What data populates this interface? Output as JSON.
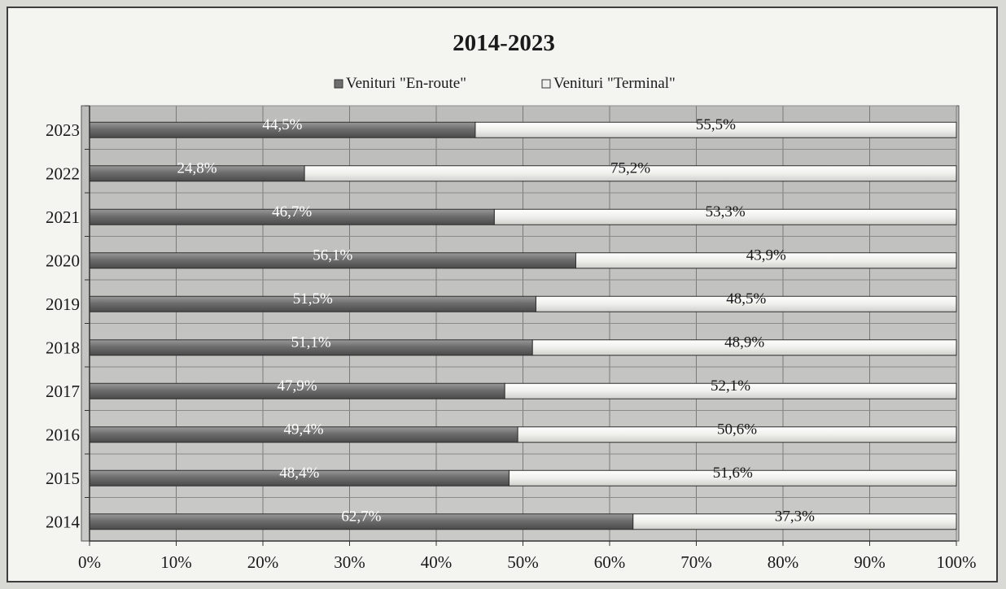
{
  "chart_data": {
    "type": "bar",
    "orientation": "horizontal",
    "stacked": true,
    "percent_stacked": true,
    "title": "2014-2023",
    "categories": [
      "2014",
      "2015",
      "2016",
      "2017",
      "2018",
      "2019",
      "2020",
      "2021",
      "2022",
      "2023"
    ],
    "series": [
      {
        "name": "Venituri \"En-route\"",
        "values": [
          62.7,
          48.4,
          49.4,
          47.9,
          51.1,
          51.5,
          56.1,
          46.7,
          24.8,
          44.5
        ],
        "labels": [
          "62,7%",
          "48,4%",
          "49,4%",
          "47,9%",
          "51,1%",
          "51,5%",
          "56,1%",
          "46,7%",
          "24,8%",
          "44,5%"
        ],
        "color": "#6e6e6e"
      },
      {
        "name": "Venituri \"Terminal\"",
        "values": [
          37.3,
          51.6,
          50.6,
          52.1,
          48.9,
          48.5,
          43.9,
          53.3,
          75.2,
          55.5
        ],
        "labels": [
          "37,3%",
          "51,6%",
          "50,6%",
          "52,1%",
          "48,9%",
          "48,5%",
          "43,9%",
          "53,3%",
          "75,2%",
          "55,5%"
        ],
        "color": "#efefec"
      }
    ],
    "xlim": [
      0,
      100
    ],
    "x_ticks": [
      "0%",
      "10%",
      "20%",
      "30%",
      "40%",
      "50%",
      "60%",
      "70%",
      "80%",
      "90%",
      "100%"
    ],
    "grid": true,
    "legend_position": "top"
  }
}
